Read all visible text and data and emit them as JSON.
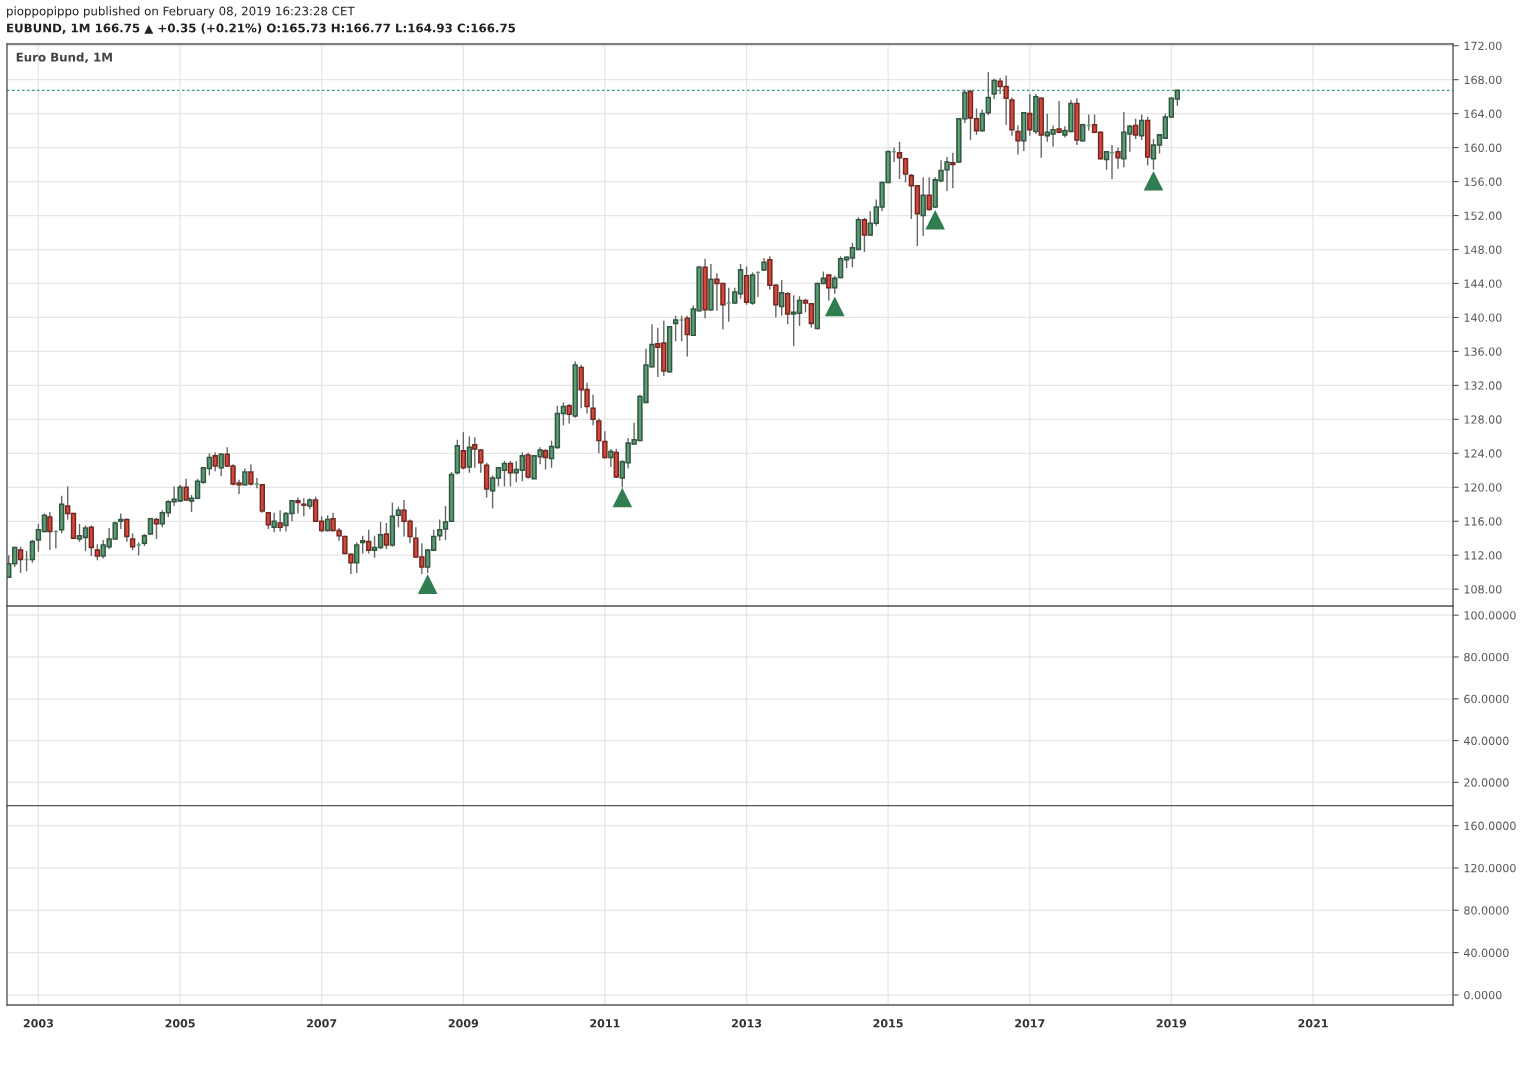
{
  "chart_data": [
    {
      "type": "candlestick",
      "title": "Euro Bund, 1M",
      "annotations": [
        "pioppopippo published on February 08, 2019 16:23:28 CET",
        "EUBUND, 1M 166.75 ▲ +0.35 (+0.21%) O:165.73 H:166.77 L:164.93 C:166.75"
      ],
      "colors": [
        "#5c9e77",
        "#5c9e77",
        "#d4493c",
        "#5c9e77",
        "#5c9e77",
        "#5c9e77",
        "#5c9e77",
        "#d4493c",
        "#5c9e77",
        "#5c9e77",
        "#d4493c",
        "#d4493c",
        "#5c9e77",
        "#5c9e77",
        "#d4493c",
        "#d4493c",
        "#5c9e77",
        "#5c9e77",
        "#5c9e77",
        "#5c9e77",
        "#d4493c",
        "#d4493c",
        "#5c9e77",
        "#5c9e77",
        "#5c9e77",
        "#d4493c",
        "#5c9e77",
        "#5c9e77",
        "#5c9e77",
        "#5c9e77",
        "#d4493c",
        "#5c9e77",
        "#5c9e77",
        "#5c9e77",
        "#5c9e77",
        "#d4493c",
        "#5c9e77",
        "#d4493c",
        "#d4493c",
        "#d4493c",
        "#5c9e77",
        "#d4493c",
        "#5c9e77",
        "#d4493c",
        "#d4493c",
        "#5c9e77",
        "#d4493c",
        "#5c9e77",
        "#5c9e77",
        "#d4493c",
        "#d4493c",
        "#5c9e77",
        "#d4493c",
        "#d4493c",
        "#5c9e77",
        "#d4493c",
        "#d4493c",
        "#d4493c",
        "#d4493c",
        "#5c9e77",
        "#5c9e77",
        "#d4493c",
        "#5c9e77",
        "#5c9e77",
        "#d4493c",
        "#5c9e77",
        "#5c9e77",
        "#d4493c",
        "#d4493c",
        "#d4493c",
        "#d4493c",
        "#5c9e77",
        "#5c9e77",
        "#5c9e77",
        "#5c9e77",
        "#5c9e77",
        "#5c9e77",
        "#d4493c",
        "#5c9e77",
        "#d4493c",
        "#d4493c",
        "#d4493c",
        "#5c9e77",
        "#5c9e77",
        "#5c9e77",
        "#d4493c",
        "#5c9e77",
        "#5c9e77",
        "#d4493c",
        "#5c9e77",
        "#5c9e77",
        "#d4493c",
        "#5c9e77",
        "#5c9e77",
        "#5c9e77",
        "#d4493c",
        "#5c9e77",
        "#d4493c",
        "#d4493c",
        "#d4493c",
        "#d4493c",
        "#d4493c",
        "#5c9e77",
        "#d4493c",
        "#5c9e77",
        "#5c9e77",
        "#5c9e77",
        "#5c9e77",
        "#5c9e77",
        "#5c9e77",
        "#d4493c",
        "#d4493c",
        "#5c9e77",
        "#5c9e77",
        "#5c9e77",
        "#d4493c",
        "#5c9e77",
        "#5c9e77",
        "#d4493c",
        "#5c9e77",
        "#d4493c",
        "#d4493c",
        "#5c9e77",
        "#5c9e77",
        "#5c9e77",
        "#d4493c",
        "#5c9e77",
        "#5c9e77",
        "#5c9e77",
        "#d4493c",
        "#d4493c",
        "#5c9e77",
        "#d4493c",
        "#5c9e77",
        "#5c9e77",
        "#d4493c",
        "#d4493c",
        "#5c9e77",
        "#5c9e77",
        "#d4493c",
        "#5c9e77",
        "#5c9e77",
        "#5c9e77",
        "#5c9e77",
        "#5c9e77",
        "#d4493c",
        "#5c9e77",
        "#5c9e77",
        "#5c9e77",
        "#5c9e77",
        "#5c9e77",
        "#d4493c",
        "#d4493c",
        "#d4493c",
        "#d4493c",
        "#5c9e77",
        "#d4493c",
        "#5c9e77",
        "#5c9e77",
        "#5c9e77",
        "#d4493c",
        "#5c9e77",
        "#5c9e77",
        "#d4493c",
        "#d4493c",
        "#5c9e77",
        "#5c9e77",
        "#5c9e77",
        "#d4493c",
        "#d4493c",
        "#d4493c",
        "#d4493c",
        "#5c9e77",
        "#d4493c",
        "#5c9e77",
        "#d4493c",
        "#5c9e77",
        "#5c9e77",
        "#d4493c",
        "#5c9e77",
        "#5c9e77",
        "#d4493c",
        "#5c9e77",
        "#5c9e77",
        "#d4493c",
        "#d4493c",
        "#5c9e77",
        "#5c9e77",
        "#d4493c",
        "#5c9e77",
        "#5c9e77",
        "#d4493c",
        "#5c9e77",
        "#d4493c",
        "#5c9e77",
        "#5c9e77",
        "#5c9e77",
        "#5c9e77",
        "#5c9e77"
      ],
      "x": [
        "2002-08",
        "2002-09",
        "2002-10",
        "2002-11",
        "2002-12",
        "2003-01",
        "2003-02",
        "2003-03",
        "2003-04",
        "2003-05",
        "2003-06",
        "2003-07",
        "2003-08",
        "2003-09",
        "2003-10",
        "2003-11",
        "2003-12",
        "2004-01",
        "2004-02",
        "2004-03",
        "2004-04",
        "2004-05",
        "2004-06",
        "2004-07",
        "2004-08",
        "2004-09",
        "2004-10",
        "2004-11",
        "2004-12",
        "2005-01",
        "2005-02",
        "2005-03",
        "2005-04",
        "2005-05",
        "2005-06",
        "2005-07",
        "2005-08",
        "2005-09",
        "2005-10",
        "2005-11",
        "2005-12",
        "2006-01",
        "2006-02",
        "2006-03",
        "2006-04",
        "2006-05",
        "2006-06",
        "2006-07",
        "2006-08",
        "2006-09",
        "2006-10",
        "2006-11",
        "2006-12",
        "2007-01",
        "2007-02",
        "2007-03",
        "2007-04",
        "2007-05",
        "2007-06",
        "2007-07",
        "2007-08",
        "2007-09",
        "2007-10",
        "2007-11",
        "2007-12",
        "2008-01",
        "2008-02",
        "2008-03",
        "2008-04",
        "2008-05",
        "2008-06",
        "2008-07",
        "2008-08",
        "2008-09",
        "2008-10",
        "2008-11",
        "2008-12",
        "2009-01",
        "2009-02",
        "2009-03",
        "2009-04",
        "2009-05",
        "2009-06",
        "2009-07",
        "2009-08",
        "2009-09",
        "2009-10",
        "2009-11",
        "2009-12",
        "2010-01",
        "2010-02",
        "2010-03",
        "2010-04",
        "2010-05",
        "2010-06",
        "2010-07",
        "2010-08",
        "2010-09",
        "2010-10",
        "2010-11",
        "2010-12",
        "2011-01",
        "2011-02",
        "2011-03",
        "2011-04",
        "2011-05",
        "2011-06",
        "2011-07",
        "2011-08",
        "2011-09",
        "2011-10",
        "2011-11",
        "2011-12",
        "2012-01",
        "2012-02",
        "2012-03",
        "2012-04",
        "2012-05",
        "2012-06",
        "2012-07",
        "2012-08",
        "2012-09",
        "2012-10",
        "2012-11",
        "2012-12",
        "2013-01",
        "2013-02",
        "2013-03",
        "2013-04",
        "2013-05",
        "2013-06",
        "2013-07",
        "2013-08",
        "2013-09",
        "2013-10",
        "2013-11",
        "2013-12",
        "2014-01",
        "2014-02",
        "2014-03",
        "2014-04",
        "2014-05",
        "2014-06",
        "2014-07",
        "2014-08",
        "2014-09",
        "2014-10",
        "2014-11",
        "2014-12",
        "2015-01",
        "2015-02",
        "2015-03",
        "2015-04",
        "2015-05",
        "2015-06",
        "2015-07",
        "2015-08",
        "2015-09",
        "2015-10",
        "2015-11",
        "2015-12",
        "2016-01",
        "2016-02",
        "2016-03",
        "2016-04",
        "2016-05",
        "2016-06",
        "2016-07",
        "2016-08",
        "2016-09",
        "2016-10",
        "2016-11",
        "2016-12",
        "2017-01",
        "2017-02",
        "2017-03",
        "2017-04",
        "2017-05",
        "2017-06",
        "2017-07",
        "2017-08",
        "2017-09",
        "2017-10",
        "2017-11",
        "2017-12",
        "2018-01",
        "2018-02",
        "2018-03",
        "2018-04",
        "2018-05",
        "2018-06",
        "2018-07",
        "2018-08",
        "2018-09",
        "2018-10",
        "2018-11",
        "2018-12",
        "2019-01",
        "2019-02"
      ],
      "ohlc": [
        [
          109.4,
          112.0,
          109.4,
          111.0
        ],
        [
          111.0,
          113.0,
          110.6,
          112.9
        ],
        [
          112.6,
          113.0,
          109.9,
          111.5
        ],
        [
          111.5,
          112.5,
          110.1,
          111.5
        ],
        [
          111.5,
          113.8,
          111.1,
          113.6
        ],
        [
          113.8,
          115.7,
          112.4,
          115.0
        ],
        [
          114.8,
          116.9,
          114.7,
          116.7
        ],
        [
          116.5,
          117.1,
          112.6,
          114.8
        ],
        [
          114.8,
          114.9,
          112.8,
          114.8
        ],
        [
          115.0,
          119.0,
          114.6,
          118.0
        ],
        [
          117.8,
          120.1,
          116.2,
          116.9
        ],
        [
          116.9,
          117.0,
          113.9,
          114.0
        ],
        [
          113.9,
          115.7,
          113.6,
          114.3
        ],
        [
          114.1,
          115.5,
          112.5,
          115.2
        ],
        [
          115.3,
          115.5,
          111.9,
          112.9
        ],
        [
          112.6,
          113.3,
          111.4,
          111.9
        ],
        [
          111.9,
          113.8,
          111.6,
          113.2
        ],
        [
          113.0,
          115.2,
          112.7,
          113.9
        ],
        [
          113.9,
          116.0,
          113.8,
          115.8
        ],
        [
          116.0,
          116.9,
          115.1,
          116.2
        ],
        [
          116.2,
          116.3,
          113.6,
          114.2
        ],
        [
          113.9,
          114.6,
          112.6,
          113.0
        ],
        [
          113.2,
          113.5,
          112.0,
          113.2
        ],
        [
          113.4,
          114.5,
          113.1,
          114.3
        ],
        [
          114.5,
          116.4,
          114.4,
          116.3
        ],
        [
          116.2,
          116.4,
          113.9,
          115.7
        ],
        [
          115.7,
          117.3,
          115.3,
          117.0
        ],
        [
          117.0,
          118.5,
          116.5,
          118.3
        ],
        [
          118.3,
          120.1,
          117.8,
          118.6
        ],
        [
          118.4,
          120.3,
          118.3,
          120.0
        ],
        [
          120.0,
          121.0,
          118.4,
          118.5
        ],
        [
          118.4,
          119.1,
          117.1,
          118.7
        ],
        [
          118.7,
          121.0,
          118.6,
          120.7
        ],
        [
          120.6,
          122.4,
          120.4,
          122.3
        ],
        [
          122.2,
          124.0,
          121.4,
          123.5
        ],
        [
          123.7,
          124.1,
          121.9,
          122.5
        ],
        [
          122.3,
          124.0,
          121.3,
          123.9
        ],
        [
          123.9,
          124.7,
          122.4,
          122.5
        ],
        [
          122.5,
          122.7,
          120.2,
          120.4
        ],
        [
          120.5,
          120.9,
          119.2,
          120.3
        ],
        [
          120.3,
          122.2,
          120.2,
          121.8
        ],
        [
          121.8,
          122.7,
          120.2,
          120.4
        ],
        [
          120.4,
          121.1,
          119.9,
          120.4
        ],
        [
          120.3,
          120.4,
          117.0,
          117.2
        ],
        [
          117.0,
          117.1,
          115.1,
          115.6
        ],
        [
          115.3,
          117.0,
          114.7,
          116.0
        ],
        [
          115.8,
          117.3,
          114.8,
          115.3
        ],
        [
          115.5,
          117.1,
          114.8,
          116.9
        ],
        [
          116.9,
          118.5,
          116.0,
          118.4
        ],
        [
          118.4,
          118.8,
          116.9,
          118.2
        ],
        [
          118.0,
          118.7,
          116.6,
          117.9
        ],
        [
          117.8,
          118.7,
          117.4,
          118.5
        ],
        [
          118.5,
          118.9,
          115.9,
          116.0
        ],
        [
          116.0,
          116.6,
          114.7,
          114.9
        ],
        [
          114.9,
          116.7,
          114.8,
          116.2
        ],
        [
          116.3,
          117.0,
          114.8,
          114.9
        ],
        [
          114.9,
          115.2,
          113.7,
          114.3
        ],
        [
          114.2,
          114.3,
          112.1,
          112.2
        ],
        [
          112.1,
          112.2,
          109.8,
          111.1
        ],
        [
          111.1,
          113.5,
          109.9,
          113.2
        ],
        [
          113.5,
          114.3,
          112.2,
          113.7
        ],
        [
          113.6,
          115.0,
          112.2,
          112.6
        ],
        [
          112.6,
          114.3,
          111.7,
          112.9
        ],
        [
          112.9,
          115.9,
          112.7,
          114.4
        ],
        [
          114.5,
          115.8,
          112.7,
          113.2
        ],
        [
          113.2,
          118.2,
          113.0,
          116.6
        ],
        [
          116.7,
          117.7,
          115.3,
          117.3
        ],
        [
          117.3,
          118.5,
          114.2,
          116.0
        ],
        [
          116.0,
          116.2,
          113.4,
          114.2
        ],
        [
          114.0,
          115.3,
          111.7,
          111.8
        ],
        [
          111.8,
          113.4,
          109.8,
          110.6
        ],
        [
          110.6,
          112.7,
          109.9,
          112.6
        ],
        [
          112.6,
          115.0,
          112.5,
          114.2
        ],
        [
          114.3,
          116.2,
          113.7,
          115.0
        ],
        [
          115.1,
          117.8,
          113.8,
          115.9
        ],
        [
          116.0,
          121.8,
          115.9,
          121.5
        ],
        [
          121.7,
          125.6,
          121.5,
          124.9
        ],
        [
          124.3,
          126.5,
          122.1,
          122.3
        ],
        [
          122.4,
          126.0,
          121.7,
          124.7
        ],
        [
          125.0,
          125.9,
          122.3,
          124.5
        ],
        [
          124.4,
          124.5,
          121.7,
          122.9
        ],
        [
          122.6,
          122.9,
          118.8,
          119.8
        ],
        [
          119.6,
          121.4,
          117.5,
          121.1
        ],
        [
          121.1,
          122.4,
          120.1,
          122.3
        ],
        [
          122.0,
          123.1,
          120.1,
          122.8
        ],
        [
          122.8,
          123.1,
          120.1,
          121.7
        ],
        [
          121.7,
          123.1,
          120.6,
          122.1
        ],
        [
          122.0,
          124.1,
          120.7,
          123.7
        ],
        [
          123.8,
          124.1,
          121.0,
          121.2
        ],
        [
          121.0,
          123.8,
          121.0,
          123.7
        ],
        [
          123.6,
          124.7,
          122.7,
          124.4
        ],
        [
          124.3,
          124.5,
          122.1,
          123.5
        ],
        [
          123.4,
          125.5,
          122.3,
          124.8
        ],
        [
          124.7,
          129.6,
          124.5,
          128.7
        ],
        [
          128.7,
          130.0,
          127.3,
          129.5
        ],
        [
          129.6,
          129.8,
          127.5,
          128.6
        ],
        [
          128.4,
          134.8,
          128.2,
          134.4
        ],
        [
          134.1,
          134.4,
          129.3,
          131.5
        ],
        [
          131.5,
          132.3,
          128.7,
          129.5
        ],
        [
          129.3,
          130.9,
          127.3,
          128.0
        ],
        [
          127.8,
          128.1,
          124.0,
          125.5
        ],
        [
          125.4,
          126.6,
          123.4,
          123.5
        ],
        [
          123.5,
          124.5,
          122.4,
          124.2
        ],
        [
          124.1,
          124.5,
          121.1,
          121.2
        ],
        [
          121.1,
          123.2,
          120.0,
          123.0
        ],
        [
          122.9,
          125.8,
          122.2,
          125.2
        ],
        [
          125.1,
          127.6,
          125.0,
          125.6
        ],
        [
          125.5,
          130.9,
          125.4,
          130.7
        ],
        [
          130.0,
          136.3,
          129.9,
          134.4
        ],
        [
          134.2,
          139.2,
          134.1,
          136.8
        ],
        [
          136.9,
          138.8,
          133.0,
          136.5
        ],
        [
          137.0,
          139.6,
          133.1,
          133.7
        ],
        [
          133.6,
          139.0,
          133.5,
          138.9
        ],
        [
          139.3,
          140.2,
          137.2,
          139.7
        ],
        [
          139.7,
          140.2,
          137.2,
          139.7
        ],
        [
          139.9,
          140.2,
          135.4,
          138.0
        ],
        [
          137.9,
          141.4,
          137.8,
          141.0
        ],
        [
          140.8,
          146.1,
          140.7,
          145.9
        ],
        [
          145.9,
          146.9,
          139.9,
          140.9
        ],
        [
          140.9,
          146.3,
          140.8,
          144.5
        ],
        [
          144.5,
          145.2,
          140.8,
          144.0
        ],
        [
          144.0,
          144.1,
          138.6,
          141.5
        ],
        [
          141.7,
          143.5,
          139.5,
          141.7
        ],
        [
          141.7,
          143.5,
          141.6,
          143.0
        ],
        [
          142.8,
          146.3,
          142.2,
          145.6
        ],
        [
          144.9,
          146.0,
          141.5,
          141.8
        ],
        [
          141.7,
          145.3,
          141.5,
          145.0
        ],
        [
          145.3,
          145.4,
          142.4,
          145.3
        ],
        [
          145.6,
          147.0,
          145.5,
          146.5
        ],
        [
          146.8,
          147.2,
          143.3,
          143.8
        ],
        [
          143.8,
          143.9,
          140.0,
          141.5
        ],
        [
          141.3,
          144.4,
          140.2,
          142.9
        ],
        [
          142.8,
          143.0,
          139.2,
          140.4
        ],
        [
          140.4,
          142.6,
          136.6,
          140.6
        ],
        [
          140.5,
          142.5,
          139.0,
          142.0
        ],
        [
          142.0,
          142.2,
          140.6,
          141.7
        ],
        [
          141.6,
          141.7,
          138.8,
          139.3
        ],
        [
          138.7,
          144.1,
          138.6,
          144.0
        ],
        [
          144.0,
          145.4,
          143.9,
          144.6
        ],
        [
          145.0,
          145.1,
          142.0,
          143.5
        ],
        [
          143.5,
          144.9,
          142.8,
          144.6
        ],
        [
          144.7,
          147.2,
          144.6,
          146.9
        ],
        [
          146.8,
          147.2,
          145.8,
          147.1
        ],
        [
          147.0,
          148.8,
          145.9,
          148.2
        ],
        [
          148.0,
          151.8,
          147.9,
          151.5
        ],
        [
          151.5,
          151.7,
          147.7,
          149.7
        ],
        [
          149.7,
          152.5,
          149.6,
          151.1
        ],
        [
          151.1,
          153.9,
          150.8,
          153.0
        ],
        [
          153.0,
          156.0,
          152.5,
          155.9
        ],
        [
          155.9,
          159.7,
          155.8,
          159.5
        ],
        [
          159.5,
          160.0,
          158.3,
          159.5
        ],
        [
          159.4,
          160.7,
          156.3,
          158.8
        ],
        [
          158.7,
          158.8,
          155.9,
          156.9
        ],
        [
          156.7,
          156.9,
          151.6,
          155.5
        ],
        [
          155.5,
          155.6,
          148.4,
          152.2
        ],
        [
          152.0,
          156.5,
          149.6,
          154.4
        ],
        [
          154.4,
          156.5,
          152.6,
          152.7
        ],
        [
          153.0,
          156.5,
          152.9,
          156.2
        ],
        [
          156.1,
          158.5,
          155.9,
          157.3
        ],
        [
          157.4,
          158.9,
          154.9,
          158.3
        ],
        [
          158.2,
          159.4,
          155.2,
          158.0
        ],
        [
          158.3,
          163.5,
          158.2,
          163.4
        ],
        [
          163.4,
          166.8,
          162.9,
          166.5
        ],
        [
          166.6,
          166.8,
          160.9,
          163.5
        ],
        [
          163.4,
          164.6,
          161.5,
          162.0
        ],
        [
          162.0,
          164.5,
          161.9,
          164.0
        ],
        [
          164.1,
          168.9,
          163.8,
          165.9
        ],
        [
          166.3,
          168.1,
          165.7,
          167.9
        ],
        [
          167.8,
          168.2,
          166.3,
          167.2
        ],
        [
          167.2,
          168.5,
          162.7,
          165.8
        ],
        [
          165.6,
          165.9,
          161.4,
          162.1
        ],
        [
          161.9,
          162.6,
          159.2,
          160.8
        ],
        [
          160.8,
          164.2,
          159.6,
          164.1
        ],
        [
          164.0,
          166.3,
          161.4,
          162.1
        ],
        [
          161.9,
          166.3,
          161.6,
          166.0
        ],
        [
          165.8,
          165.9,
          158.8,
          161.5
        ],
        [
          161.4,
          164.0,
          160.7,
          161.8
        ],
        [
          161.6,
          162.6,
          160.1,
          162.1
        ],
        [
          162.2,
          165.5,
          161.7,
          161.8
        ],
        [
          161.5,
          162.5,
          161.2,
          162.0
        ],
        [
          161.9,
          165.6,
          161.8,
          165.2
        ],
        [
          165.2,
          165.8,
          160.3,
          160.9
        ],
        [
          160.8,
          162.8,
          160.7,
          162.7
        ],
        [
          162.6,
          163.9,
          162.0,
          162.6
        ],
        [
          162.7,
          163.9,
          161.7,
          161.8
        ],
        [
          161.8,
          161.9,
          158.6,
          158.7
        ],
        [
          158.6,
          159.6,
          157.4,
          159.5
        ],
        [
          159.4,
          160.3,
          156.3,
          159.4
        ],
        [
          159.5,
          160.0,
          157.5,
          158.8
        ],
        [
          158.7,
          164.2,
          157.7,
          161.8
        ],
        [
          161.6,
          162.7,
          159.5,
          162.5
        ],
        [
          162.6,
          163.4,
          161.0,
          161.5
        ],
        [
          161.4,
          163.9,
          160.9,
          163.2
        ],
        [
          163.2,
          163.6,
          157.9,
          158.9
        ],
        [
          158.7,
          161.0,
          157.4,
          160.3
        ],
        [
          160.3,
          161.6,
          159.3,
          161.5
        ],
        [
          161.1,
          164.0,
          161.0,
          163.6
        ],
        [
          163.6,
          165.9,
          163.5,
          165.8
        ],
        [
          165.73,
          166.77,
          164.93,
          166.75
        ]
      ],
      "series": [
        {
          "type": "scatter",
          "marker": "triangle",
          "color": "#2f7d50",
          "x": [
            "2008-07",
            "2011-04",
            "2014-04",
            "2015-09",
            "2018-10"
          ],
          "values": [
            108.6,
            118.8,
            141.3,
            151.5,
            156.1
          ]
        }
      ],
      "ref_lines": [
        {
          "axis": "y",
          "value": 166.75,
          "color": "#2e9b78",
          "line_style": "dotted"
        }
      ],
      "xlim": [
        "2002-07-23",
        "2022-12-24"
      ],
      "xticks": [
        {
          "value": "2003",
          "label": null
        },
        {
          "value": "2005",
          "label": null
        },
        {
          "value": "2007",
          "label": null
        },
        {
          "value": "2009",
          "label": null
        },
        {
          "value": "2011",
          "label": null
        },
        {
          "value": "2013",
          "label": null
        },
        {
          "value": "2015",
          "label": null
        },
        {
          "value": "2017",
          "label": null
        },
        {
          "value": "2019",
          "label": null
        },
        {
          "value": "2021",
          "label": null
        }
      ],
      "ylim": [
        106.0,
        172.2
      ],
      "yticks": [
        {
          "value": 108,
          "label": "108.00"
        },
        {
          "value": 112,
          "label": "112.00"
        },
        {
          "value": 116,
          "label": "116.00"
        },
        {
          "value": 120,
          "label": "120.00"
        },
        {
          "value": 124,
          "label": "124.00"
        },
        {
          "value": 128,
          "label": "128.00"
        },
        {
          "value": 132,
          "label": "132.00"
        },
        {
          "value": 136,
          "label": "136.00"
        },
        {
          "value": 140,
          "label": "140.00"
        },
        {
          "value": 144,
          "label": "144.00"
        },
        {
          "value": 148,
          "label": "148.00"
        },
        {
          "value": 152,
          "label": "152.00"
        },
        {
          "value": 156,
          "label": "156.00"
        },
        {
          "value": 160,
          "label": "160.00"
        },
        {
          "value": 164,
          "label": "164.00"
        },
        {
          "value": 168,
          "label": "168.00"
        },
        {
          "value": 172,
          "label": "172.00"
        }
      ],
      "grid": true,
      "legend": false,
      "tick_labels": "y"
    },
    {
      "type": "line",
      "xlim": [
        "2002-07-23",
        "2022-12-24"
      ],
      "xticks": [
        {
          "value": "2003",
          "label": null
        },
        {
          "value": "2005",
          "label": null
        },
        {
          "value": "2007",
          "label": null
        },
        {
          "value": "2009",
          "label": null
        },
        {
          "value": "2011",
          "label": null
        },
        {
          "value": "2013",
          "label": null
        },
        {
          "value": "2015",
          "label": null
        },
        {
          "value": "2017",
          "label": null
        },
        {
          "value": "2019",
          "label": null
        },
        {
          "value": "2021",
          "label": null
        }
      ],
      "ylim": [
        8.9,
        104.3
      ],
      "yticks": [
        {
          "value": 20,
          "label": "20.0000"
        },
        {
          "value": 40,
          "label": "40.0000"
        },
        {
          "value": 60,
          "label": "60.0000"
        },
        {
          "value": 80,
          "label": "80.0000"
        },
        {
          "value": 100,
          "label": "100.0000"
        }
      ],
      "grid": true,
      "tick_labels": "y"
    },
    {
      "type": "line",
      "xlim": [
        "2002-07-23",
        "2022-12-24"
      ],
      "xticks": [
        {
          "value": "2003",
          "label": "2003"
        },
        {
          "value": "2005",
          "label": "2005"
        },
        {
          "value": "2007",
          "label": "2007"
        },
        {
          "value": "2009",
          "label": "2009"
        },
        {
          "value": "2011",
          "label": "2011"
        },
        {
          "value": "2013",
          "label": "2013"
        },
        {
          "value": "2015",
          "label": "2015"
        },
        {
          "value": "2017",
          "label": "2017"
        },
        {
          "value": "2019",
          "label": "2019"
        },
        {
          "value": "2021",
          "label": "2021"
        }
      ],
      "ylim": [
        -9.5,
        178.9
      ],
      "yticks": [
        {
          "value": 0,
          "label": "0.0000"
        },
        {
          "value": 40,
          "label": "40.0000"
        },
        {
          "value": 80,
          "label": "80.0000"
        },
        {
          "value": 120,
          "label": "120.0000"
        },
        {
          "value": 160,
          "label": "160.0000"
        }
      ],
      "grid": true
    }
  ]
}
